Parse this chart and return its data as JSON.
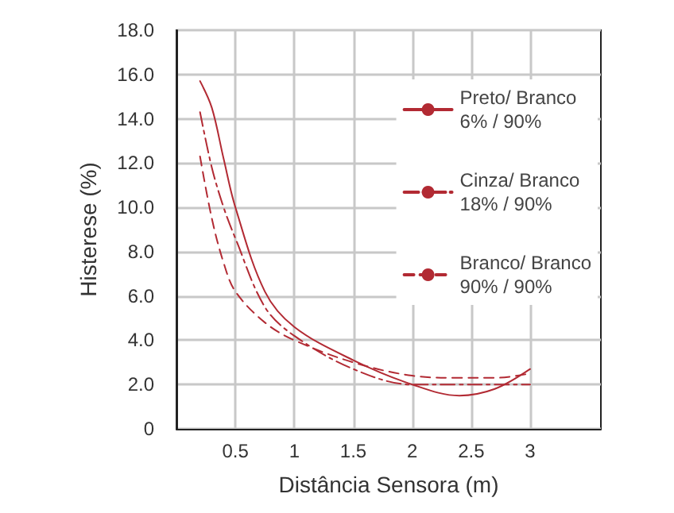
{
  "chart_data": {
    "type": "line",
    "xlabel": "Distância Sensora (m)",
    "ylabel": "Histerese (%)",
    "xlim": [
      0,
      3.6
    ],
    "xticks": [
      0.5,
      1,
      1.5,
      2,
      2.5,
      3
    ],
    "ylim": [
      0,
      18
    ],
    "yticks": [
      0,
      {
        "value": 2,
        "label": "2.0"
      },
      {
        "value": 4,
        "label": "4.0"
      },
      {
        "value": 6,
        "label": "6.0"
      },
      {
        "value": 8,
        "label": "8.0"
      },
      {
        "value": 10,
        "label": "10.0"
      },
      {
        "value": 12,
        "label": "12.0"
      },
      {
        "value": 14,
        "label": "14.0"
      },
      {
        "value": 16,
        "label": "16.0"
      },
      {
        "value": 18,
        "label": "18.0"
      }
    ],
    "grid": true,
    "legend": "top right",
    "marker": "none",
    "x": [
      0.2,
      0.3,
      0.4,
      0.5,
      0.75,
      1,
      1.5,
      2,
      2.4,
      2.7,
      3
    ],
    "series": [
      {
        "name": "Preto/ Branco\n6% / 90%",
        "color": "#b22a33",
        "line_style": "solid",
        "values": [
          15.7,
          14.5,
          12.2,
          10.0,
          6.2,
          4.6,
          3.1,
          2.0,
          1.5,
          1.8,
          2.7
        ]
      },
      {
        "name": "Cinza/ Branco\n18% / 90%",
        "color": "#b22a33",
        "line_style": "dashdot",
        "values": [
          14.3,
          11.8,
          10.0,
          8.6,
          5.5,
          4.2,
          2.7,
          2.0,
          2.0,
          2.0,
          2.0
        ]
      },
      {
        "name": "Branco/ Branco\n90% / 90%",
        "color": "#b22a33",
        "line_style": "dashed",
        "values": [
          12.3,
          9.5,
          7.5,
          6.2,
          4.8,
          4.0,
          3.0,
          2.4,
          2.3,
          2.3,
          2.5
        ]
      }
    ]
  }
}
